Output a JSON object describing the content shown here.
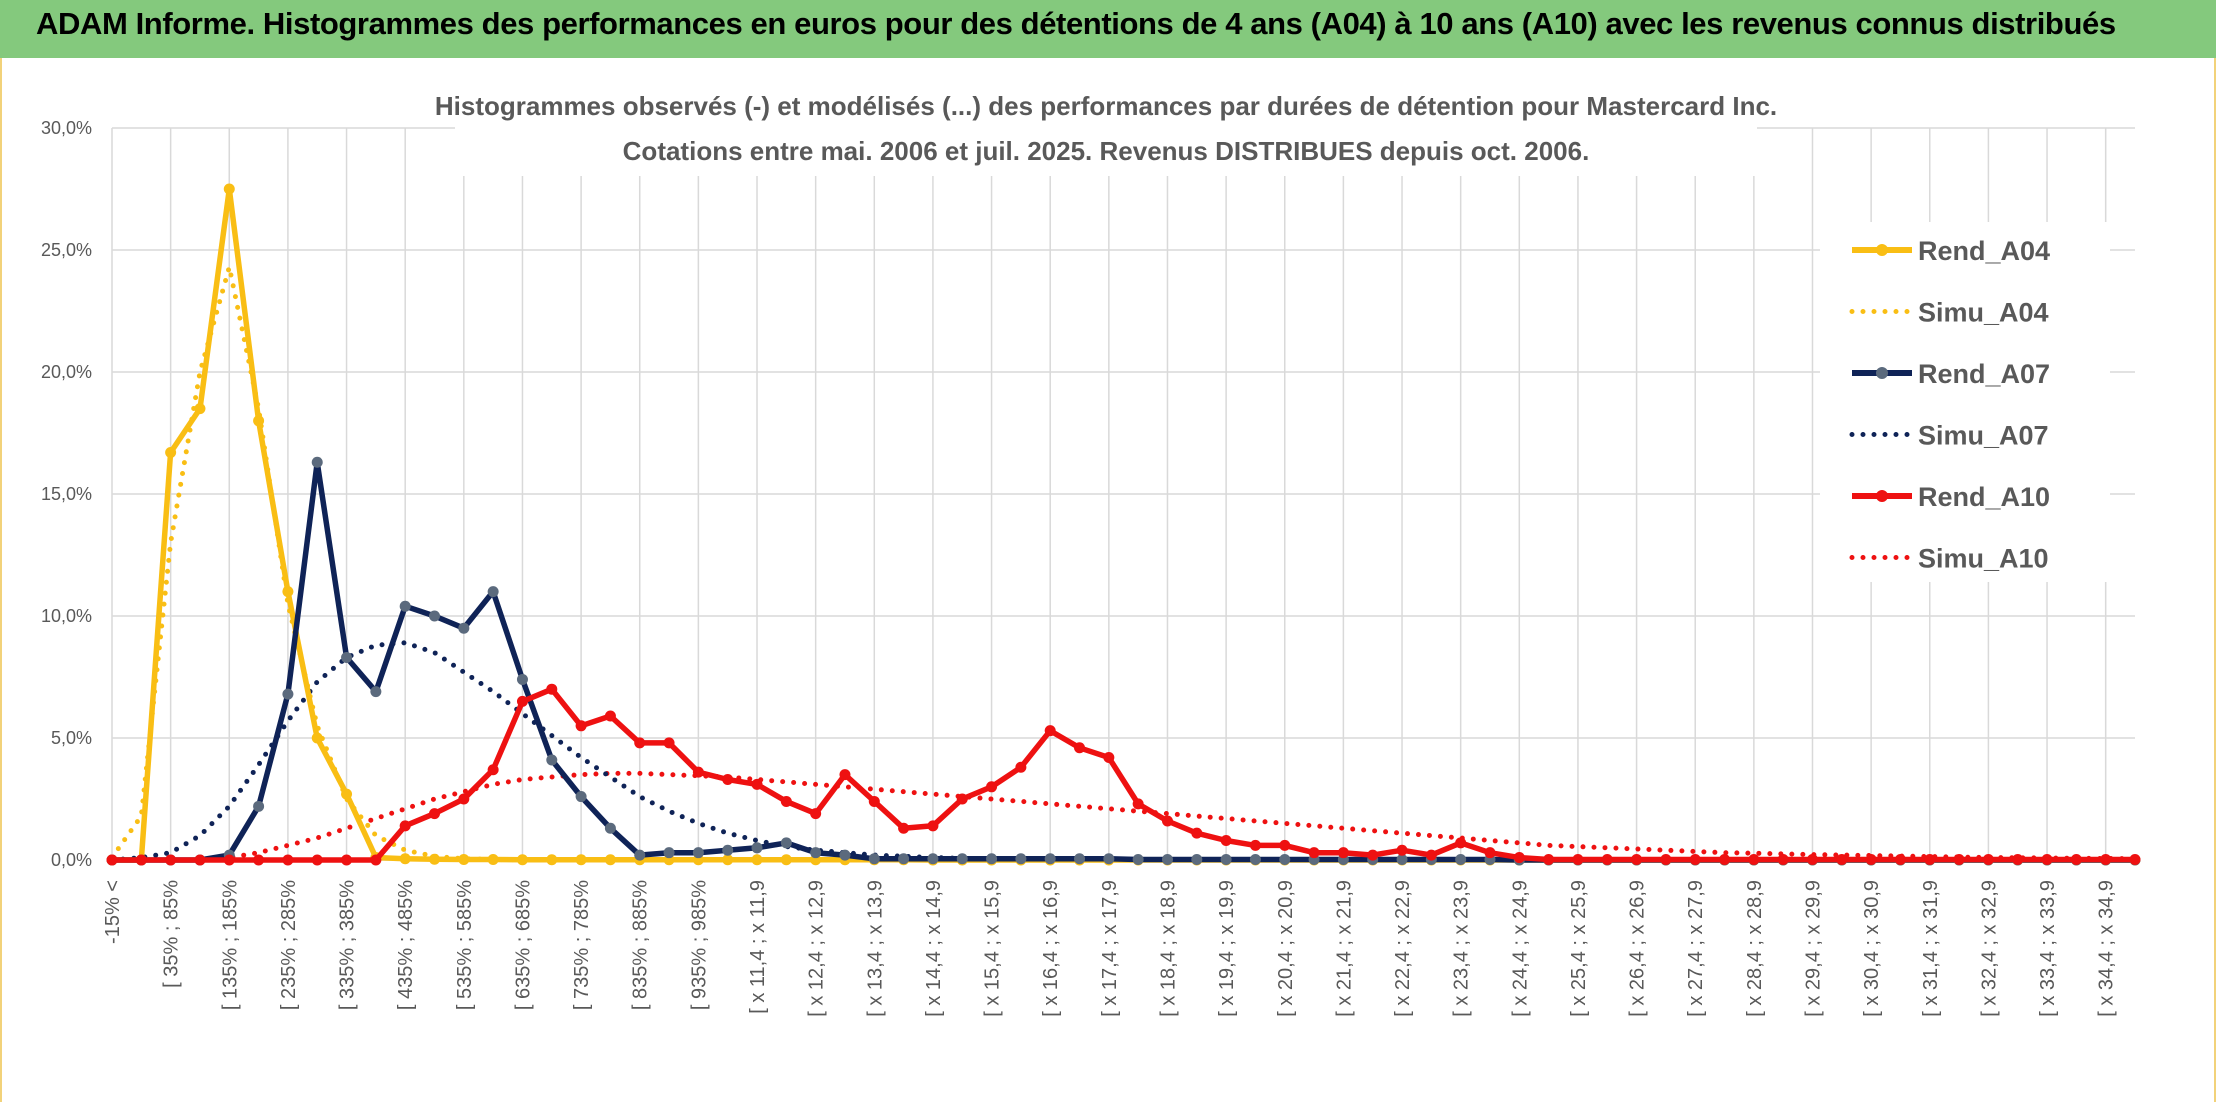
{
  "banner": {
    "text": "ADAM Informe. Histogrammes des performances en euros pour des détentions de 4 ans (A04) à 10 ans (A10) avec les revenus connus distribués"
  },
  "colors": {
    "banner_bg": "#84c97d",
    "a04": "#f9be14",
    "a07": "#0f2357",
    "a07_marker": "#5b6a7d",
    "a10": "#ee1111"
  },
  "chart_data": {
    "type": "line",
    "title": "Histogrammes observés (-) et modélisés (...) des performances par durées de détention pour Mastercard Inc.",
    "subtitle": "Cotations entre mai. 2006 et juil. 2025. Revenus DISTRIBUES depuis oct. 2006.",
    "ylim": [
      0,
      30
    ],
    "yticks": [
      "0,0%",
      "5,0%",
      "10,0%",
      "15,0%",
      "20,0%",
      "25,0%",
      "30,0%"
    ],
    "grid": true,
    "legend_position": "right",
    "categories": [
      "-15% <",
      "",
      "[ 35% ; 85%",
      "",
      "[ 135% ; 185%",
      "",
      "[ 235% ; 285%",
      "",
      "[ 335% ; 385%",
      "",
      "[ 435% ; 485%",
      "",
      "[ 535% ; 585%",
      "",
      "[ 635% ; 685%",
      "",
      "[ 735% ; 785%",
      "",
      "[ 835% ; 885%",
      "",
      "[ 935% ; 985%",
      "",
      "[ x 11,4 ; x 11,9",
      "",
      "[ x 12,4 ; x 12,9",
      "",
      "[ x 13,4 ; x 13,9",
      "",
      "[ x 14,4 ; x 14,9",
      "",
      "[ x 15,4 ; x 15,9",
      "",
      "[ x 16,4 ; x 16,9",
      "",
      "[ x 17,4 ; x 17,9",
      "",
      "[ x 18,4 ; x 18,9",
      "",
      "[ x 19,4 ; x 19,9",
      "",
      "[ x 20,4 ; x 20,9",
      "",
      "[ x 21,4 ; x 21,9",
      "",
      "[ x 22,4 ; x 22,9",
      "",
      "[ x 23,4 ; x 23,9",
      "",
      "[ x 24,4 ; x 24,9",
      "",
      "[ x 25,4 ; x 25,9",
      "",
      "[ x 26,4 ; x 26,9",
      "",
      "[ x 27,4 ; x 27,9",
      "",
      "[ x 28,4 ; x 28,9",
      "",
      "[ x 29,4 ; x 29,9",
      "",
      "[ x 30,4 ; x 30,9",
      "",
      "[ x 31,4 ; x 31,9",
      "",
      "[ x 32,4 ; x 32,9",
      "",
      "[ x 33,4 ; x 33,9",
      "",
      "[ x 34,4 ; x 34,9",
      ""
    ],
    "series": [
      {
        "name": "Rend_A04",
        "style": "solid",
        "color": "#f9be14",
        "values": [
          0,
          0,
          16.7,
          18.5,
          27.5,
          18.0,
          11.0,
          5.0,
          2.7,
          0.1,
          0.05,
          0.03,
          0.02,
          0.02,
          0.01,
          0.01,
          0.01,
          0.01,
          0.01,
          0.01,
          0.01,
          0.01,
          0.01,
          0.01,
          0.01,
          0.01,
          0.01,
          0.01,
          0,
          0,
          0,
          0,
          0,
          0,
          0,
          0,
          0,
          0,
          0,
          0,
          0,
          0,
          0,
          0,
          0,
          0,
          0,
          0,
          0,
          0,
          0,
          0,
          0,
          0,
          0,
          0,
          0,
          0,
          0,
          0,
          0,
          0,
          0,
          0,
          0,
          0,
          0,
          0,
          0,
          0
        ]
      },
      {
        "name": "Simu_A04",
        "style": "dotted",
        "color": "#f9be14",
        "values": [
          0.1,
          1.8,
          13.0,
          20.0,
          24.3,
          18.5,
          10.5,
          5.5,
          2.5,
          1.0,
          0.4,
          0.15,
          0.05,
          0.02,
          0.01,
          0,
          0,
          0,
          0,
          0,
          0,
          0,
          0,
          0,
          0,
          0,
          0,
          0,
          0,
          0,
          0,
          0,
          0,
          0,
          0,
          0,
          0,
          0,
          0,
          0,
          0,
          0,
          0,
          0,
          0,
          0,
          0,
          0,
          0,
          0,
          0,
          0,
          0,
          0,
          0,
          0,
          0,
          0,
          0,
          0,
          0,
          0,
          0,
          0,
          0,
          0,
          0,
          0,
          0,
          0
        ]
      },
      {
        "name": "Rend_A07",
        "style": "solid",
        "color": "#0f2357",
        "values": [
          0,
          0,
          0,
          0,
          0.2,
          2.2,
          6.8,
          16.3,
          8.3,
          6.9,
          10.4,
          10.0,
          9.5,
          11.0,
          7.4,
          4.1,
          2.6,
          1.3,
          0.2,
          0.3,
          0.3,
          0.4,
          0.5,
          0.7,
          0.3,
          0.2,
          0.05,
          0.05,
          0.05,
          0.05,
          0.05,
          0.05,
          0.05,
          0.05,
          0.05,
          0.02,
          0.02,
          0.02,
          0.02,
          0.02,
          0.02,
          0.02,
          0.02,
          0.02,
          0.02,
          0.02,
          0.02,
          0.02,
          0,
          0,
          0,
          0,
          0,
          0,
          0,
          0,
          0,
          0,
          0,
          0,
          0,
          0,
          0,
          0,
          0,
          0,
          0,
          0,
          0,
          0
        ]
      },
      {
        "name": "Simu_A07",
        "style": "dotted",
        "color": "#0f2357",
        "values": [
          0,
          0.1,
          0.3,
          1.0,
          2.2,
          3.9,
          5.7,
          7.3,
          8.3,
          8.8,
          8.9,
          8.5,
          7.7,
          6.9,
          6.0,
          5.1,
          4.2,
          3.4,
          2.6,
          2.0,
          1.5,
          1.1,
          0.8,
          0.55,
          0.4,
          0.3,
          0.2,
          0.15,
          0.1,
          0.07,
          0.05,
          0.03,
          0.02,
          0.01,
          0,
          0,
          0,
          0,
          0,
          0,
          0,
          0,
          0,
          0,
          0,
          0,
          0,
          0,
          0,
          0,
          0,
          0,
          0,
          0,
          0,
          0,
          0,
          0,
          0,
          0,
          0,
          0,
          0,
          0,
          0,
          0,
          0,
          0,
          0,
          0
        ]
      },
      {
        "name": "Rend_A10",
        "style": "solid",
        "color": "#ee1111",
        "values": [
          0,
          0,
          0,
          0,
          0,
          0,
          0,
          0,
          0,
          0,
          1.4,
          1.9,
          2.5,
          3.7,
          6.5,
          7.0,
          5.5,
          5.9,
          4.8,
          4.8,
          3.6,
          3.3,
          3.1,
          2.4,
          1.9,
          3.5,
          2.4,
          1.3,
          1.4,
          2.5,
          3.0,
          3.8,
          5.3,
          4.6,
          4.2,
          2.3,
          1.6,
          1.1,
          0.8,
          0.6,
          0.6,
          0.3,
          0.3,
          0.2,
          0.4,
          0.2,
          0.7,
          0.3,
          0.1,
          0.02,
          0.02,
          0.02,
          0.02,
          0.02,
          0.02,
          0.02,
          0.02,
          0.02,
          0.02,
          0.02,
          0.02,
          0.02,
          0.02,
          0.02,
          0.02,
          0.02,
          0.02,
          0.02,
          0.02,
          0.02
        ]
      },
      {
        "name": "Simu_A10",
        "style": "dotted",
        "color": "#ee1111",
        "values": [
          0,
          0,
          0,
          0,
          0.1,
          0.3,
          0.6,
          0.9,
          1.3,
          1.7,
          2.1,
          2.5,
          2.8,
          3.1,
          3.3,
          3.4,
          3.5,
          3.55,
          3.55,
          3.5,
          3.45,
          3.4,
          3.3,
          3.2,
          3.1,
          3.0,
          2.9,
          2.8,
          2.7,
          2.6,
          2.5,
          2.4,
          2.3,
          2.2,
          2.1,
          2.0,
          1.9,
          1.8,
          1.7,
          1.6,
          1.5,
          1.4,
          1.3,
          1.2,
          1.1,
          1.0,
          0.9,
          0.8,
          0.7,
          0.6,
          0.55,
          0.5,
          0.45,
          0.4,
          0.35,
          0.3,
          0.28,
          0.25,
          0.22,
          0.2,
          0.18,
          0.16,
          0.14,
          0.12,
          0.1,
          0.09,
          0.08,
          0.07,
          0.06,
          0.05
        ]
      }
    ]
  }
}
